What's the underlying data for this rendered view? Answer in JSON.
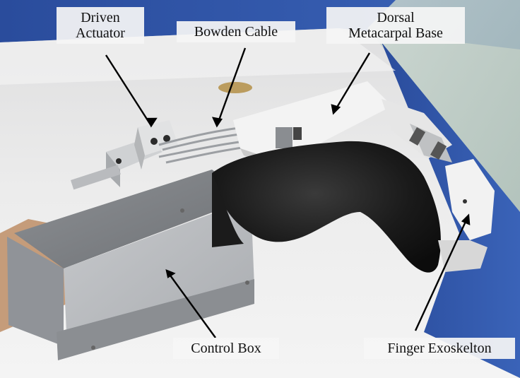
{
  "figure": {
    "labels": {
      "driven_actuator": {
        "line1": "Driven",
        "line2": "Actuator"
      },
      "bowden_cable": {
        "text": "Bowden Cable"
      },
      "dorsal_base": {
        "line1": "Dorsal",
        "line2": "Metacarpal Base"
      },
      "control_box": {
        "text": "Control Box"
      },
      "finger_exoskeleton": {
        "text": "Finger Exoskelton"
      }
    },
    "colors": {
      "wall_blue": "#2f55a8",
      "table_white": "#e9e9ea",
      "glove_black": "#161616",
      "metal_box": "#b8babd",
      "exo_white": "#f1f1f1",
      "skin": "#c9a07e"
    }
  }
}
